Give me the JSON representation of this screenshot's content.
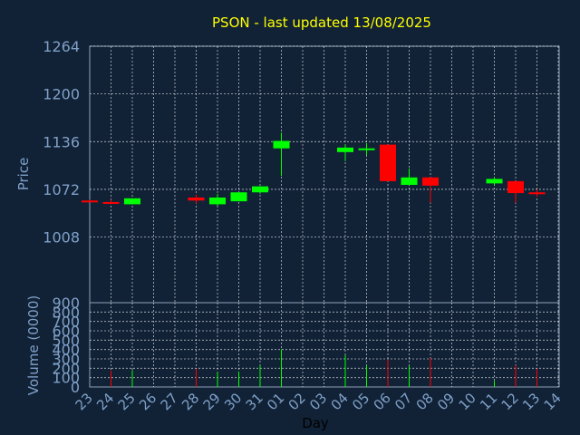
{
  "chart_data": {
    "type": "candlestick",
    "title": "PSON - last updated 13/08/2025",
    "xlabel": "Day",
    "price_panel": {
      "ylabel": "Price",
      "ylim": [
        920,
        1264
      ],
      "yticks": [
        "1264",
        "1200",
        "1136",
        "1072",
        "1008"
      ],
      "ytick_values": [
        1264,
        1200,
        1136,
        1072,
        1008
      ]
    },
    "volume_panel": {
      "ylabel": "Volume (0000)",
      "ylim": [
        0,
        900
      ],
      "yticks": [
        "900",
        "800",
        "700",
        "600",
        "500",
        "400",
        "300",
        "200",
        "100",
        "0"
      ],
      "ytick_values": [
        900,
        800,
        700,
        600,
        500,
        400,
        300,
        200,
        100,
        0
      ]
    },
    "x_ticks": [
      "23",
      "24",
      "25",
      "26",
      "27",
      "28",
      "29",
      "30",
      "31",
      "01",
      "02",
      "03",
      "04",
      "05",
      "06",
      "07",
      "08",
      "09",
      "10",
      "11",
      "12",
      "13",
      "14"
    ],
    "candles": [
      {
        "x": "23",
        "open": 1057,
        "high": 1058,
        "low": 1056,
        "close": 1057,
        "volume": 0,
        "color": "#ff0000"
      },
      {
        "x": "24",
        "open": 1055,
        "high": 1058,
        "low": 1052,
        "close": 1053,
        "volume": 175,
        "color": "#ff0000"
      },
      {
        "x": "25",
        "open": 1052,
        "high": 1060,
        "low": 1052,
        "close": 1060,
        "volume": 180,
        "color": "#00ff00"
      },
      {
        "x": "28",
        "open": 1061,
        "high": 1065,
        "low": 1053,
        "close": 1057,
        "volume": 195,
        "color": "#ff0000"
      },
      {
        "x": "29",
        "open": 1052,
        "high": 1066,
        "low": 1050,
        "close": 1061,
        "volume": 160,
        "color": "#00ff00"
      },
      {
        "x": "30",
        "open": 1056,
        "high": 1068,
        "low": 1056,
        "close": 1068,
        "volume": 165,
        "color": "#00ff00"
      },
      {
        "x": "31",
        "open": 1068,
        "high": 1076,
        "low": 1066,
        "close": 1076,
        "volume": 230,
        "color": "#00ff00"
      },
      {
        "x": "01",
        "open": 1127,
        "high": 1148,
        "low": 1090,
        "close": 1137,
        "volume": 400,
        "color": "#00ff00"
      },
      {
        "x": "04",
        "open": 1122,
        "high": 1132,
        "low": 1110,
        "close": 1128,
        "volume": 340,
        "color": "#00ff00"
      },
      {
        "x": "05",
        "open": 1126,
        "high": 1134,
        "low": 1118,
        "close": 1127,
        "volume": 230,
        "color": "#00ff00"
      },
      {
        "x": "06",
        "open": 1132,
        "high": 1132,
        "low": 1083,
        "close": 1083,
        "volume": 290,
        "color": "#ff0000"
      },
      {
        "x": "07",
        "open": 1078,
        "high": 1100,
        "low": 1078,
        "close": 1088,
        "volume": 225,
        "color": "#00ff00"
      },
      {
        "x": "08",
        "open": 1088,
        "high": 1088,
        "low": 1054,
        "close": 1077,
        "volume": 310,
        "color": "#ff0000"
      },
      {
        "x": "11",
        "open": 1080,
        "high": 1088,
        "low": 1078,
        "close": 1086,
        "volume": 65,
        "color": "#00ff00"
      },
      {
        "x": "12",
        "open": 1083,
        "high": 1083,
        "low": 1054,
        "close": 1067,
        "volume": 230,
        "color": "#ff0000"
      },
      {
        "x": "13",
        "open": 1068,
        "high": 1072,
        "low": 1062,
        "close": 1066,
        "volume": 195,
        "color": "#ff0000"
      }
    ],
    "grid": true,
    "colors": {
      "background": "#112236",
      "title": "#ffff00",
      "axis_text": "#7fa0c8",
      "grid": "#ffffff",
      "up": "#00ff00",
      "down": "#ff0000"
    }
  }
}
